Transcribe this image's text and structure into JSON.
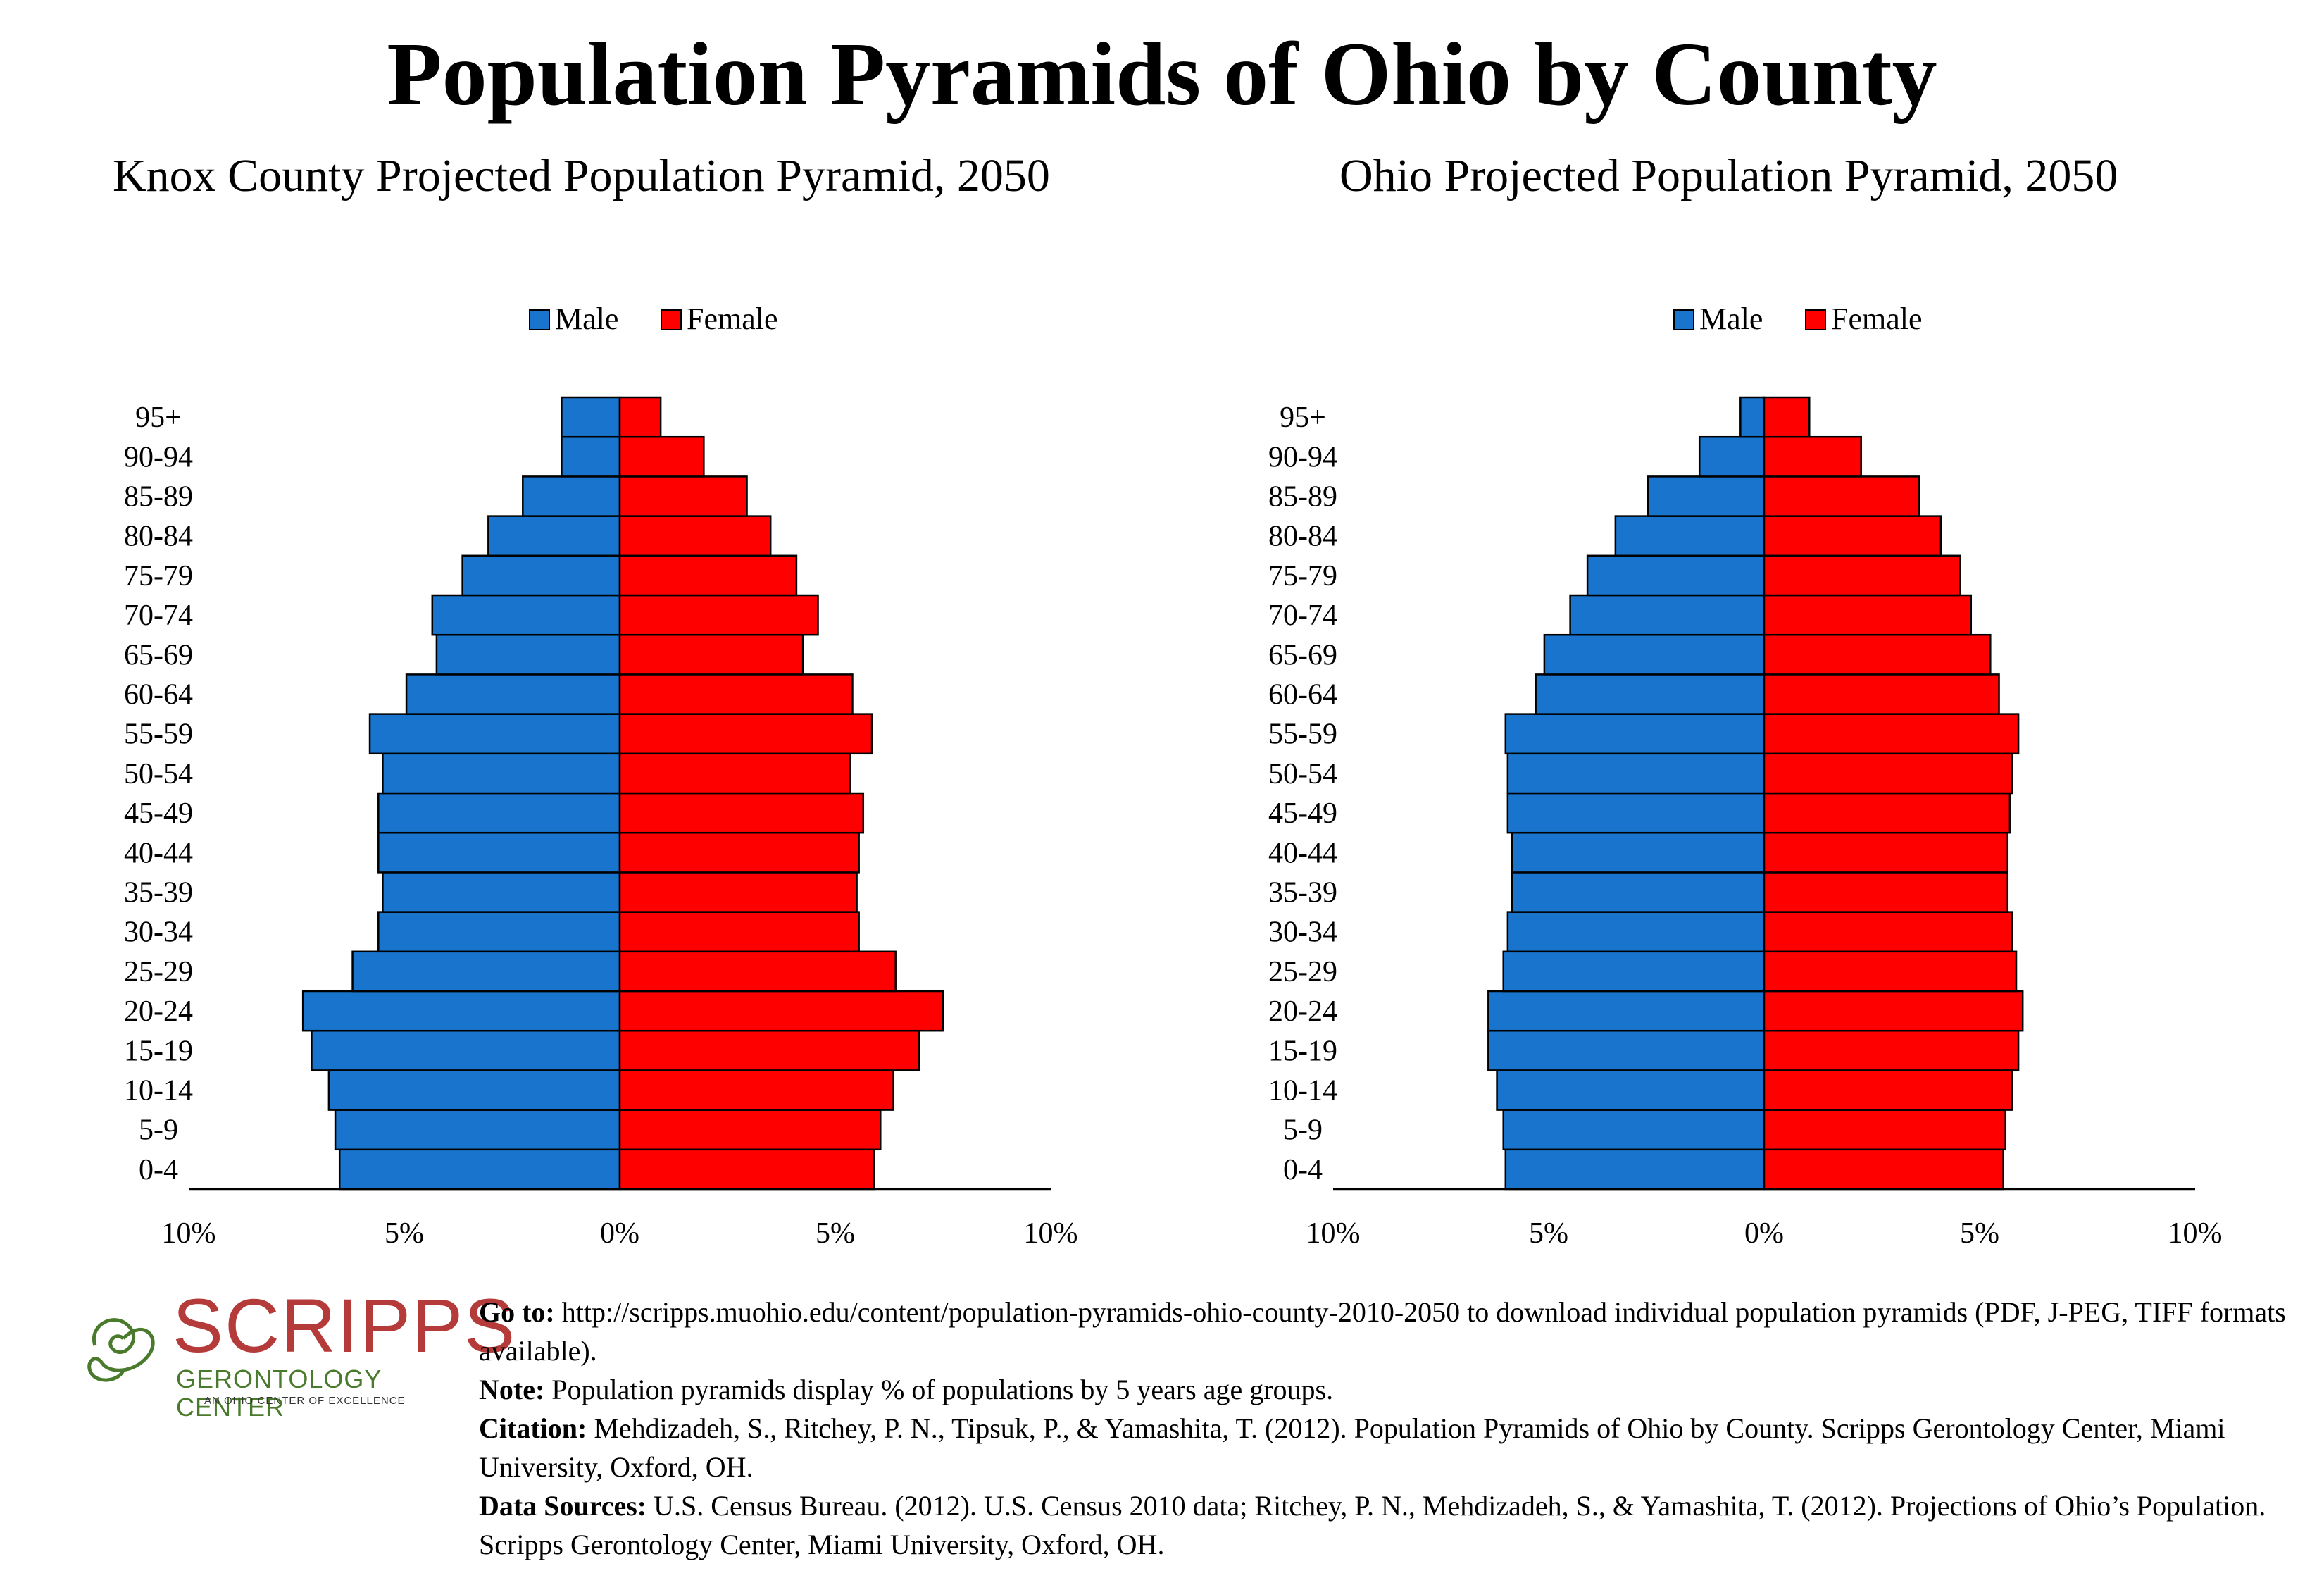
{
  "title": "Population Pyramids of Ohio by County",
  "colors": {
    "male": "#1874cd",
    "female": "#ff0000",
    "edge": "#000000"
  },
  "legend": {
    "male": "Male",
    "female": "Female"
  },
  "chart_data": [
    {
      "type": "bar",
      "orientation": "horizontal-pyramid",
      "title": "Knox County Projected Population Pyramid, 2050",
      "categories": [
        "0-4",
        "5-9",
        "10-14",
        "15-19",
        "20-24",
        "25-29",
        "30-34",
        "35-39",
        "40-44",
        "45-49",
        "50-54",
        "55-59",
        "60-64",
        "65-69",
        "70-74",
        "75-79",
        "80-84",
        "85-89",
        "90-94",
        "95+"
      ],
      "series": [
        {
          "name": "Male",
          "values": [
            6.5,
            6.6,
            6.75,
            7.15,
            7.35,
            6.2,
            5.6,
            5.5,
            5.6,
            5.6,
            5.5,
            5.8,
            4.95,
            4.25,
            4.35,
            3.65,
            3.05,
            2.25,
            1.35,
            1.35
          ]
        },
        {
          "name": "Female",
          "values": [
            5.9,
            6.05,
            6.35,
            6.95,
            7.5,
            6.4,
            5.55,
            5.5,
            5.55,
            5.65,
            5.35,
            5.85,
            5.4,
            4.25,
            4.6,
            4.1,
            3.5,
            2.95,
            1.95,
            0.95
          ]
        }
      ],
      "xlim": [
        -10,
        10
      ],
      "xticks": [
        "10%",
        "5%",
        "0%",
        "5%",
        "10%"
      ],
      "legend_position": "top"
    },
    {
      "type": "bar",
      "orientation": "horizontal-pyramid",
      "title": "Ohio Projected Population Pyramid, 2050",
      "categories": [
        "0-4",
        "5-9",
        "10-14",
        "15-19",
        "20-24",
        "25-29",
        "30-34",
        "35-39",
        "40-44",
        "45-49",
        "50-54",
        "55-59",
        "60-64",
        "65-69",
        "70-74",
        "75-79",
        "80-84",
        "85-89",
        "90-94",
        "95+"
      ],
      "series": [
        {
          "name": "Male",
          "values": [
            6.0,
            6.05,
            6.2,
            6.4,
            6.4,
            6.05,
            5.95,
            5.85,
            5.85,
            5.95,
            5.95,
            6.0,
            5.3,
            5.1,
            4.5,
            4.1,
            3.45,
            2.7,
            1.5,
            0.55
          ]
        },
        {
          "name": "Female",
          "values": [
            5.55,
            5.6,
            5.75,
            5.9,
            6.0,
            5.85,
            5.75,
            5.65,
            5.65,
            5.7,
            5.75,
            5.9,
            5.45,
            5.25,
            4.8,
            4.55,
            4.1,
            3.6,
            2.25,
            1.05
          ]
        }
      ],
      "xlim": [
        -10,
        10
      ],
      "xticks": [
        "10%",
        "5%",
        "0%",
        "5%",
        "10%"
      ],
      "legend_position": "top"
    }
  ],
  "logo": {
    "word": "SCRIPPS",
    "sub": "GERONTOLOGY CENTER",
    "tag": "AN OHIO CENTER OF EXCELLENCE"
  },
  "footer": {
    "goto_label": "Go to:",
    "goto_text": " http://scripps.muohio.edu/content/population-pyramids-ohio-county-2010-2050 to download individual population pyramids (PDF, J-PEG, TIFF formats available).",
    "note_label": "Note:",
    "note_text": " Population pyramids display % of populations by 5 years age groups.",
    "citation_label": "Citation:",
    "citation_text": " Mehdizadeh, S., Ritchey, P. N., Tipsuk, P., & Yamashita, T. (2012). Population Pyramids of Ohio by County. Scripps Gerontology Center, Miami University, Oxford, OH.",
    "sources_label": "Data Sources:",
    "sources_text": " U.S. Census Bureau. (2012). U.S. Census 2010 data; Ritchey, P. N., Mehdizadeh, S., & Yamashita, T. (2012). Projections of Ohio’s Population. Scripps Gerontology Center, Miami University, Oxford, OH."
  }
}
